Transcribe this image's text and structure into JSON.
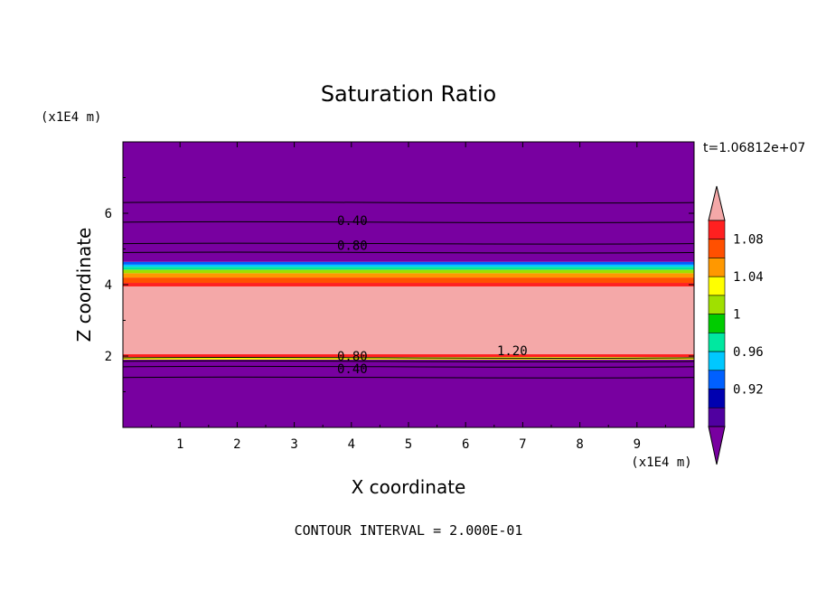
{
  "chart_data": {
    "type": "contour",
    "title": "Saturation Ratio",
    "xlabel": "X coordinate",
    "ylabel": "Z coordinate",
    "x_unit": "(x1E4 m)",
    "y_unit": "(x1E4 m)",
    "time_label": "t=1.06812e+07",
    "footer": "CONTOUR INTERVAL = 2.000E-01",
    "xlim": [
      0,
      10
    ],
    "ylim": [
      0,
      8
    ],
    "x_ticks": [
      "1",
      "2",
      "3",
      "4",
      "5",
      "6",
      "7",
      "8",
      "9"
    ],
    "y_ticks": [
      "2",
      "4",
      "6"
    ],
    "contour_labels": [
      {
        "text": "0.40",
        "x": 3.7,
        "z": 5.8
      },
      {
        "text": "0.80",
        "x": 3.7,
        "z": 5.1
      },
      {
        "text": "0.80",
        "x": 3.7,
        "z": 2.0
      },
      {
        "text": "0.40",
        "x": 3.7,
        "z": 1.65
      },
      {
        "text": "1.20",
        "x": 6.5,
        "z": 2.15
      }
    ],
    "contour_lines_z": [
      6.3,
      5.75,
      5.15,
      4.9,
      1.95,
      1.85,
      1.7,
      1.4
    ],
    "bands": [
      {
        "z0": 0.0,
        "z1": 1.9,
        "level": "below"
      },
      {
        "z0": 1.9,
        "z1": 1.97,
        "level": "1.02"
      },
      {
        "z0": 1.97,
        "z1": 2.05,
        "level": "1.08"
      },
      {
        "z0": 2.05,
        "z1": 3.95,
        "level": "above"
      },
      {
        "z0": 3.95,
        "z1": 4.05,
        "level": "1.08"
      },
      {
        "z0": 4.05,
        "z1": 4.2,
        "level": "1.06"
      },
      {
        "z0": 4.2,
        "z1": 4.32,
        "level": "1.04"
      },
      {
        "z0": 4.32,
        "z1": 4.42,
        "level": "1.00"
      },
      {
        "z0": 4.42,
        "z1": 4.5,
        "level": "0.98"
      },
      {
        "z0": 4.5,
        "z1": 4.56,
        "level": "0.96"
      },
      {
        "z0": 4.56,
        "z1": 4.64,
        "level": "0.94"
      },
      {
        "z0": 4.64,
        "z1": 8.0,
        "level": "below"
      }
    ],
    "colorbar": {
      "labels": [
        "1.08",
        "1.04",
        "1",
        "0.96",
        "0.92"
      ],
      "colors": [
        "#f4a8a8",
        "#ff2020",
        "#ff5000",
        "#ff9800",
        "#ffff00",
        "#a0e000",
        "#00cc00",
        "#00e8a0",
        "#00c8ff",
        "#0060ff",
        "#0000b0",
        "#5000a0",
        "#7800a0"
      ]
    },
    "level_colors": {
      "above": "#f4a8a8",
      "1.08": "#ff2020",
      "1.06": "#ff5000",
      "1.04": "#ff9800",
      "1.02": "#ffff00",
      "1.00": "#a0e000",
      "0.98": "#00e8a0",
      "0.96": "#00c8ff",
      "0.94": "#0060ff",
      "0.92": "#0000b0",
      "below": "#7800a0"
    }
  }
}
